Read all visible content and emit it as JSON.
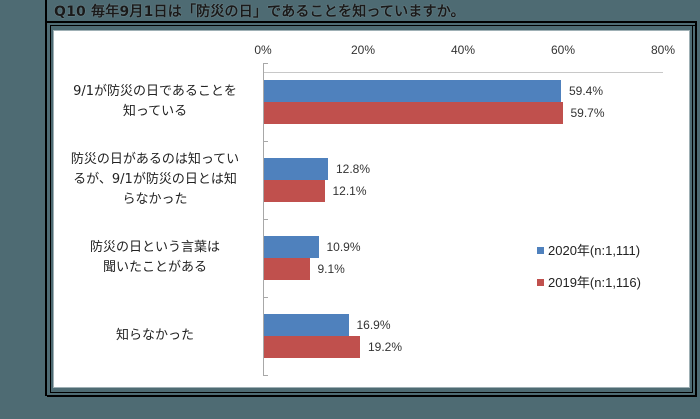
{
  "title": "Q10 毎年9月1日は「防災の日」であることを知っていますか。",
  "colors": {
    "background": "#4e6b73",
    "series_2020": "#4f81bd",
    "series_2019": "#c0504d"
  },
  "axis": {
    "ticks": [
      "0%",
      "20%",
      "40%",
      "60%",
      "80%"
    ]
  },
  "legend": [
    {
      "label": "2020年(n:1,111)",
      "color": "#4f81bd"
    },
    {
      "label": "2019年(n:1,116)",
      "color": "#c0504d"
    }
  ],
  "categories": [
    {
      "label": "9/1が防災の日であることを\n知っている",
      "v2020": 59.4,
      "v2020_label": "59.4%",
      "v2019": 59.7,
      "v2019_label": "59.7%"
    },
    {
      "label": "防災の日があるのは知ってい\nるが、9/1が防災の日とは知\nらなかった",
      "v2020": 12.8,
      "v2020_label": "12.8%",
      "v2019": 12.1,
      "v2019_label": "12.1%"
    },
    {
      "label": "防災の日という言葉は\n聞いたことがある",
      "v2020": 10.9,
      "v2020_label": "10.9%",
      "v2019": 9.1,
      "v2019_label": "9.1%"
    },
    {
      "label": "知らなかった",
      "v2020": 16.9,
      "v2020_label": "16.9%",
      "v2019": 19.2,
      "v2019_label": "19.2%"
    }
  ],
  "chart_data": {
    "type": "bar",
    "orientation": "horizontal",
    "title": "Q10 毎年9月1日は「防災の日」であることを知っていますか。",
    "categories": [
      "9/1が防災の日であることを知っている",
      "防災の日があるのは知っているが、9/1が防災の日とは知らなかった",
      "防災の日という言葉は聞いたことがある",
      "知らなかった"
    ],
    "series": [
      {
        "name": "2020年(n:1,111)",
        "color": "#4f81bd",
        "values": [
          59.4,
          12.8,
          10.9,
          16.9
        ]
      },
      {
        "name": "2019年(n:1,116)",
        "color": "#c0504d",
        "values": [
          59.7,
          12.1,
          9.1,
          19.2
        ]
      }
    ],
    "xlabel": "",
    "ylabel": "",
    "xlim": [
      0,
      80
    ],
    "x_ticks": [
      "0%",
      "20%",
      "40%",
      "60%",
      "80%"
    ],
    "x_axis_position": "top",
    "grid": false,
    "data_labels": true,
    "legend_position": "right-inside"
  }
}
